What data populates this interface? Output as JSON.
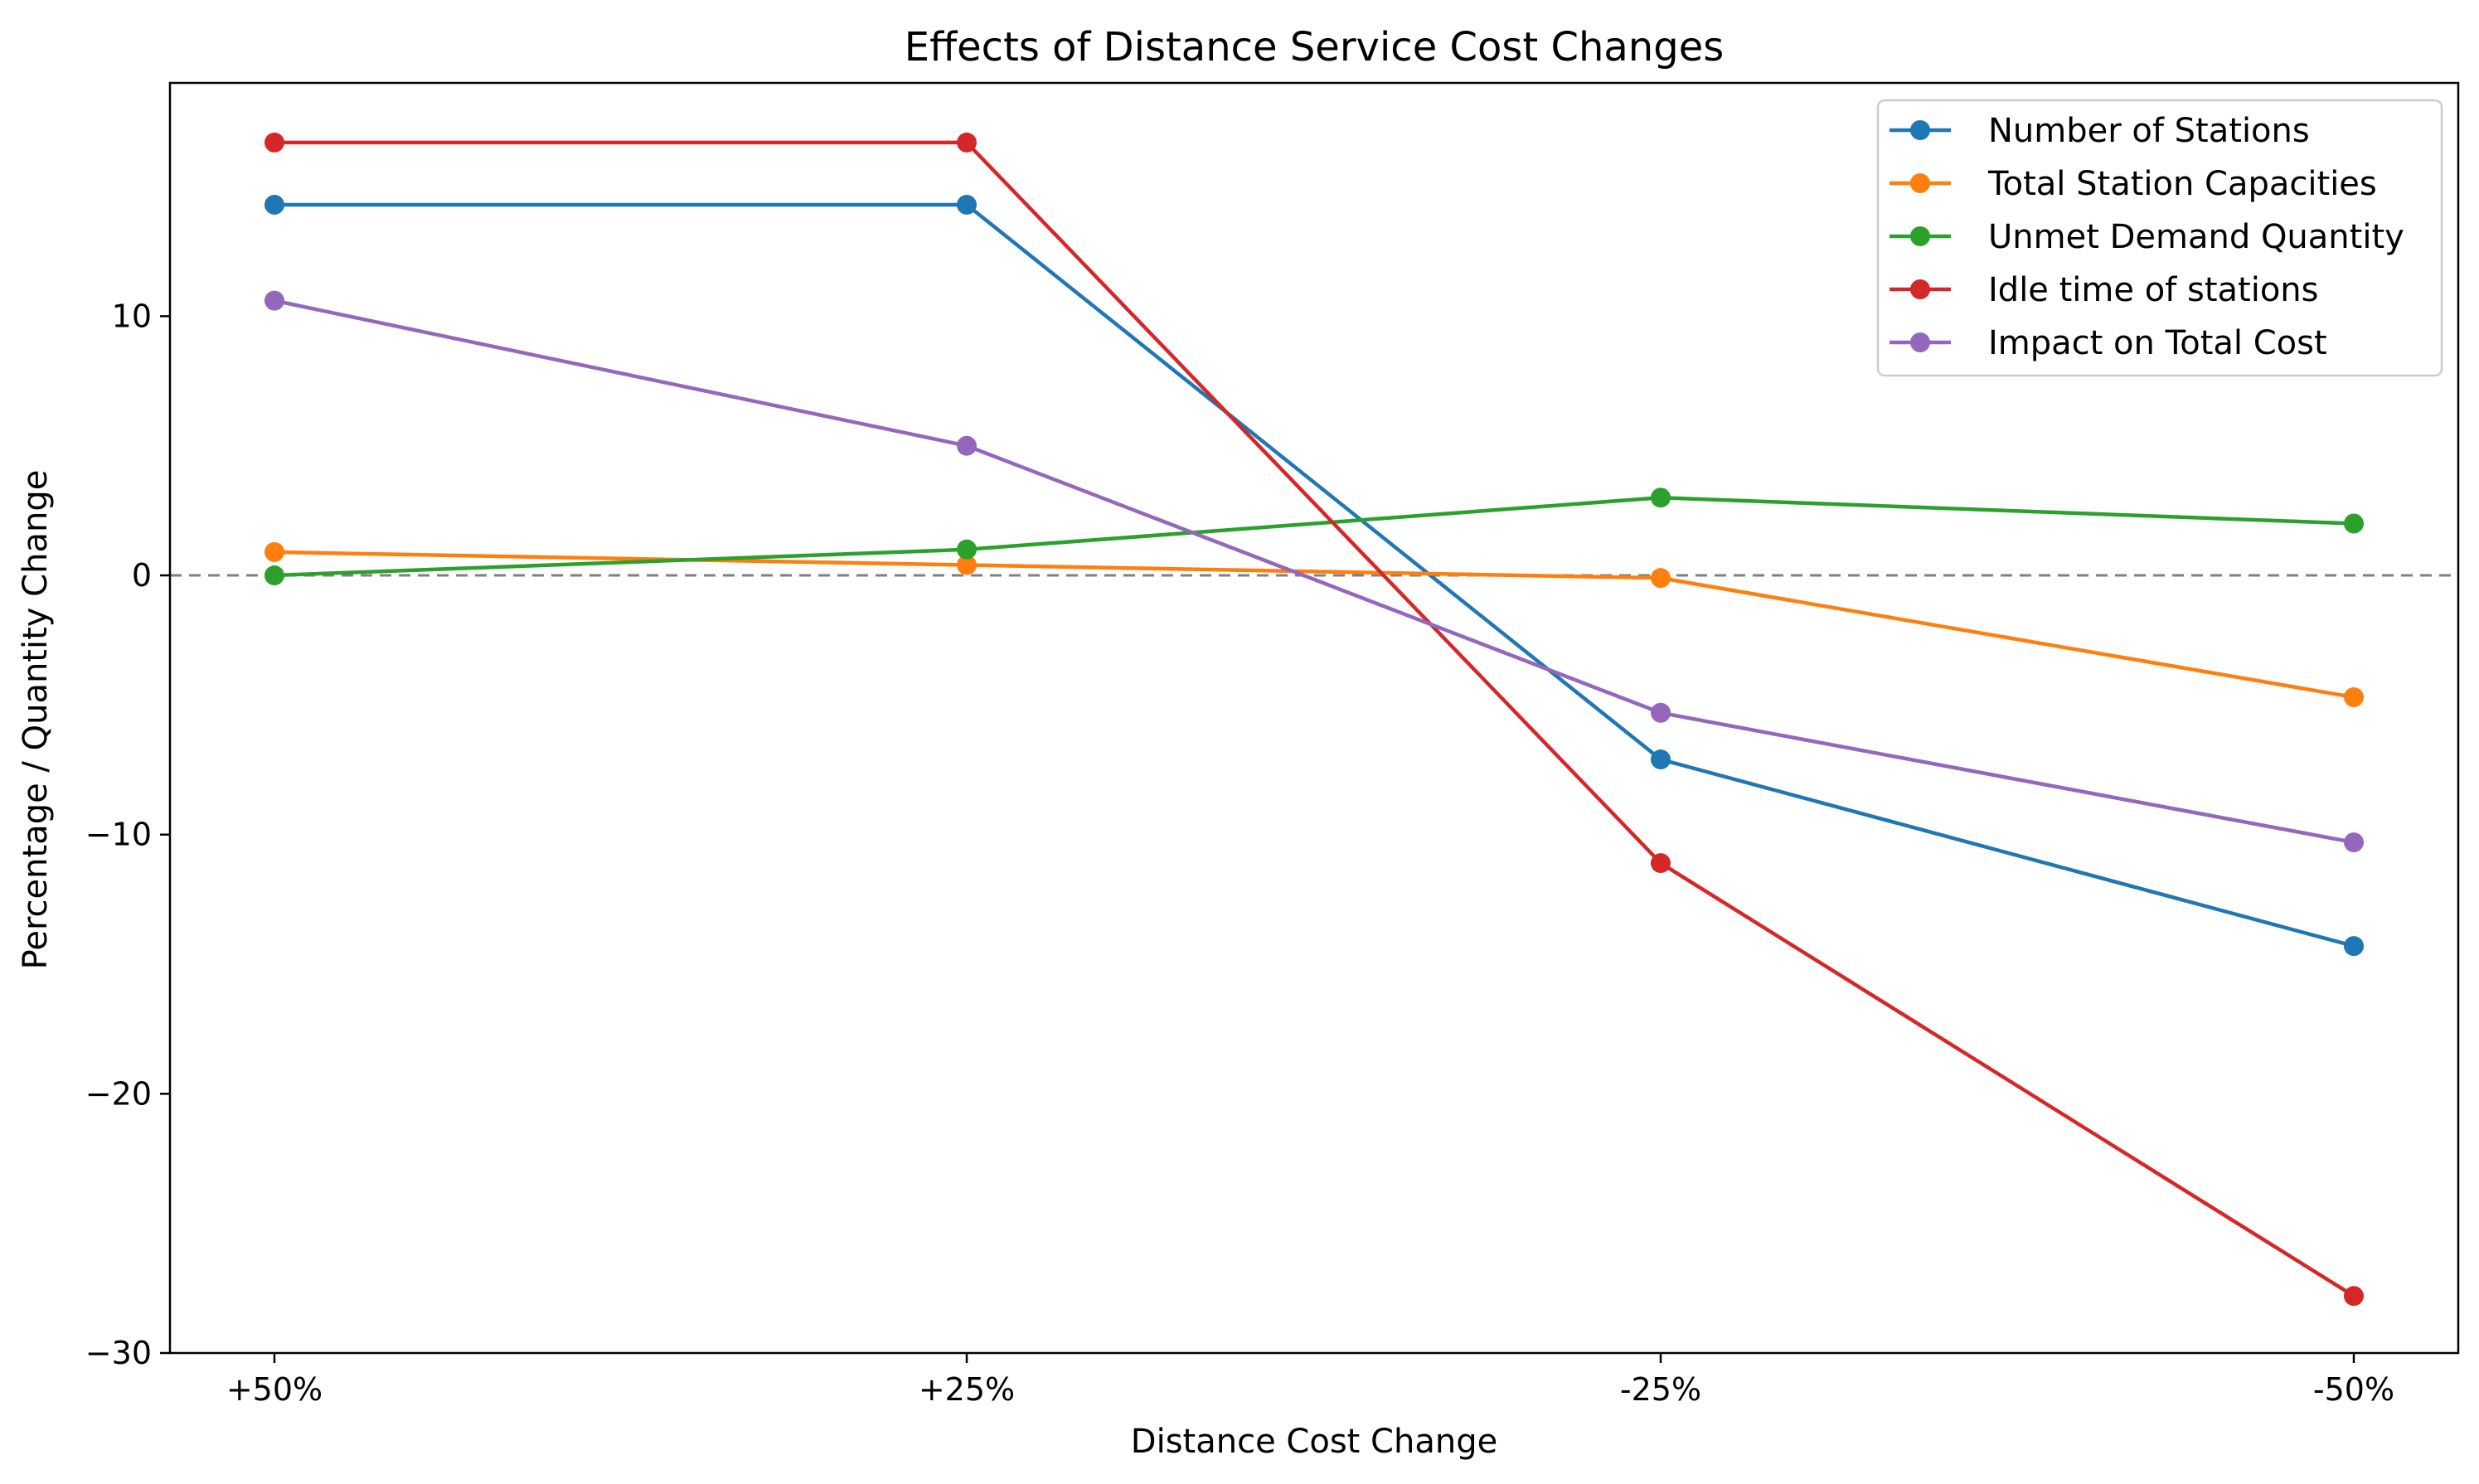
{
  "chart_data": {
    "type": "line",
    "title": "Effects of Distance Service Cost Changes",
    "xlabel": "Distance Cost Change",
    "ylabel": "Percentage / Quantity Change",
    "categories": [
      "+50%",
      "+25%",
      "-25%",
      "-50%"
    ],
    "ylim": [
      -30,
      19
    ],
    "yticks": [
      10,
      0,
      -10,
      -20,
      -30
    ],
    "reference_line": {
      "y": 0,
      "style": "dashed",
      "color": "#808080"
    },
    "grid": false,
    "legend_position": "upper-right",
    "series": [
      {
        "name": "Number of Stations",
        "color": "#1f77b4",
        "values": [
          14.3,
          14.3,
          -7.1,
          -14.3
        ]
      },
      {
        "name": "Total Station Capacities",
        "color": "#ff7f0e",
        "values": [
          0.9,
          0.4,
          -0.1,
          -4.7
        ]
      },
      {
        "name": "Unmet Demand Quantity",
        "color": "#2ca02c",
        "values": [
          0,
          1,
          3,
          2
        ]
      },
      {
        "name": "Idle time of stations",
        "color": "#d62728",
        "values": [
          16.7,
          16.7,
          -11.1,
          -27.8
        ]
      },
      {
        "name": "Impact on Total Cost",
        "color": "#9467bd",
        "values": [
          10.6,
          5.0,
          -5.3,
          -10.3
        ]
      }
    ]
  }
}
